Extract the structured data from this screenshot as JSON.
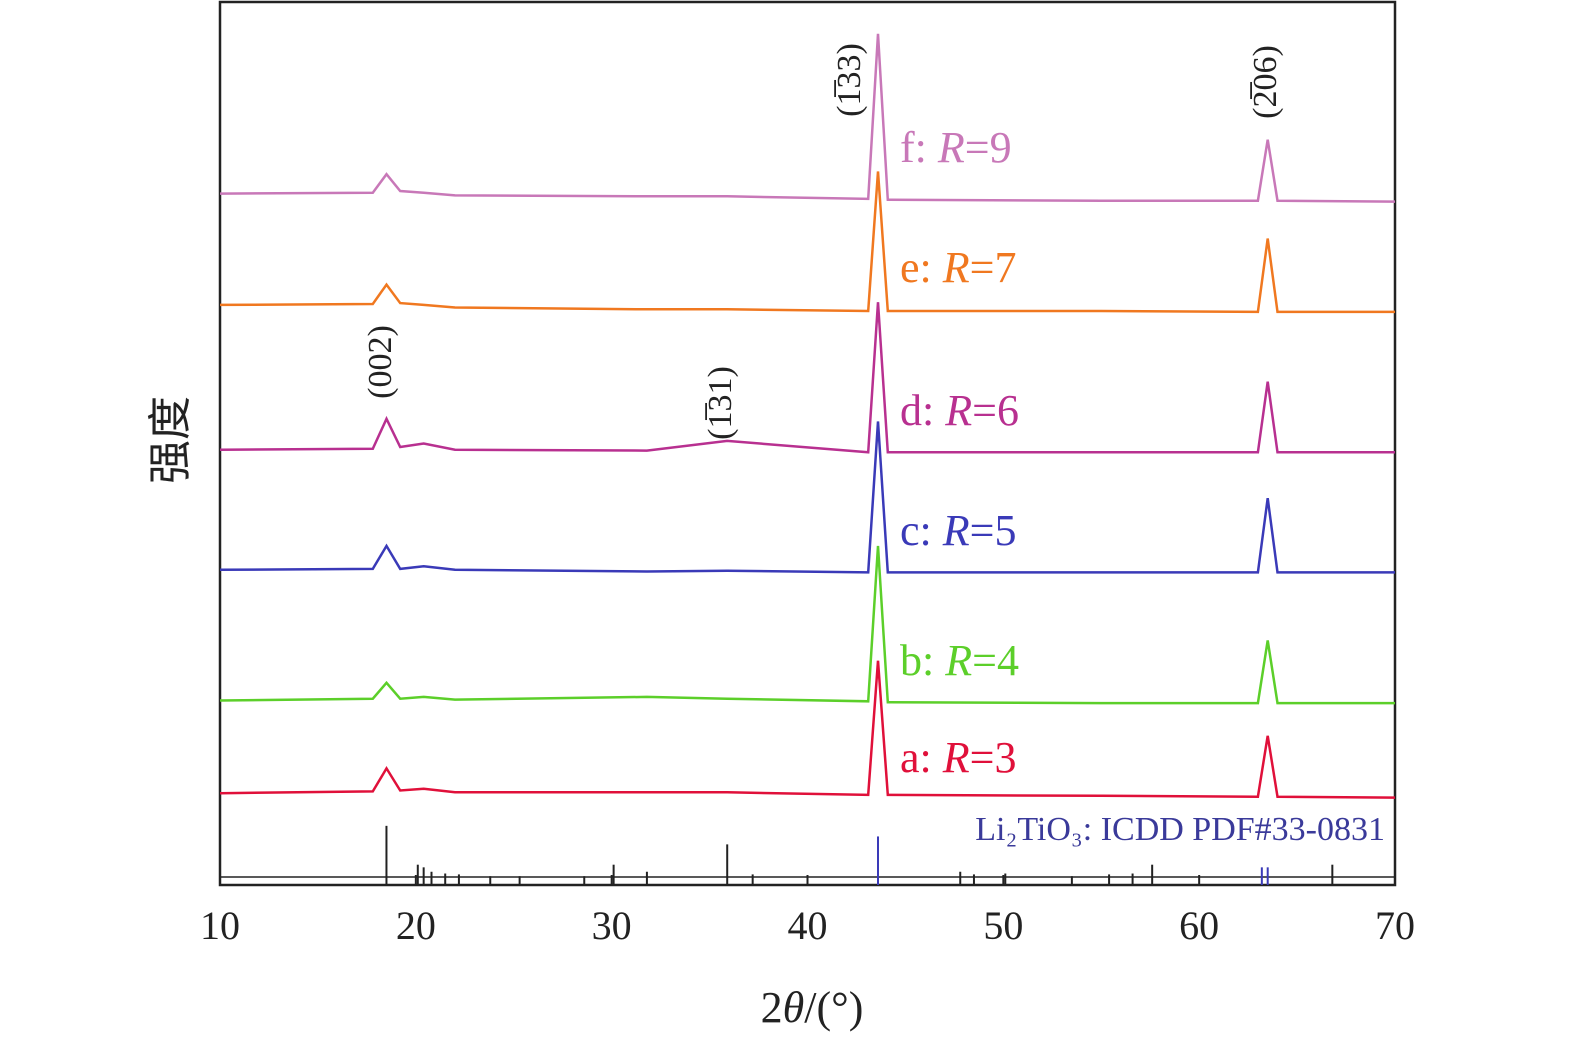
{
  "chart_data": {
    "type": "line",
    "xlabel": "2θ/(°)",
    "ylabel": "强度",
    "xlim": [
      10,
      70
    ],
    "xticks": [
      10,
      20,
      30,
      40,
      50,
      60,
      70
    ],
    "ylim": [
      0,
      100
    ],
    "x": [
      10,
      17.8,
      18.5,
      19.2,
      20.4,
      22,
      31.8,
      35.9,
      43.1,
      43.6,
      44.1,
      55,
      63.0,
      63.5,
      64.0,
      70
    ],
    "series": [
      {
        "name": "a: R=3",
        "color": "#e0103a",
        "values": [
          10.4,
          10.6,
          13.2,
          10.7,
          10.9,
          10.5,
          10.5,
          10.5,
          10.2,
          25.4,
          10.2,
          10.1,
          10.0,
          16.9,
          10.0,
          9.9
        ]
      },
      {
        "name": "b: R=4",
        "color": "#5ccf2a",
        "values": [
          20.9,
          21.1,
          22.9,
          21.1,
          21.3,
          21.0,
          21.3,
          21.1,
          20.8,
          38.4,
          20.7,
          20.6,
          20.6,
          27.7,
          20.6,
          20.6
        ]
      },
      {
        "name": "c: R=5",
        "color": "#3a3ab8",
        "values": [
          35.7,
          35.8,
          38.4,
          35.8,
          36.1,
          35.7,
          35.5,
          35.6,
          35.4,
          52.5,
          35.4,
          35.4,
          35.4,
          43.8,
          35.4,
          35.4
        ]
      },
      {
        "name": "d: R=6",
        "color": "#b83090",
        "values": [
          49.3,
          49.4,
          52.8,
          49.6,
          50.0,
          49.3,
          49.2,
          50.3,
          49.0,
          66.0,
          49.0,
          49.0,
          49.0,
          57.0,
          49.0,
          49.0
        ]
      },
      {
        "name": "e: R=7",
        "color": "#f07820",
        "values": [
          65.7,
          65.8,
          68.0,
          65.9,
          65.7,
          65.4,
          65.2,
          65.2,
          65.0,
          80.8,
          65.0,
          65.0,
          64.9,
          73.2,
          64.9,
          64.9
        ]
      },
      {
        "name": "f: R=9",
        "color": "#c878b8",
        "values": [
          78.3,
          78.4,
          80.5,
          78.6,
          78.4,
          78.1,
          78.0,
          78.0,
          77.7,
          96.4,
          77.6,
          77.5,
          77.5,
          84.4,
          77.5,
          77.4
        ]
      }
    ],
    "annotations": [
      "(002)",
      "(1̅31)",
      "(1̅33)",
      "(2̅06)"
    ],
    "reference": {
      "label": "Li₂TiO₃: ICDD PDF#33-0831",
      "x": [
        18.5,
        20.1,
        20.4,
        20.8,
        21.5,
        22.2,
        23.8,
        25.3,
        28.6,
        30.1,
        31.8,
        35.9,
        37.2,
        43.6,
        47.8,
        48.5,
        50.1,
        53.5,
        55.4,
        56.6,
        57.6,
        63.2,
        63.5,
        66.8
      ],
      "values": [
        6.7,
        2.3,
        2.0,
        1.5,
        1.3,
        1.2,
        1.0,
        1.0,
        1.0,
        2.3,
        1.5,
        4.6,
        1.2,
        5.5,
        1.5,
        1.2,
        1.3,
        1.0,
        1.2,
        1.3,
        2.3,
        2.0,
        2.0,
        2.3
      ],
      "colors": [
        "#222",
        "#222",
        "#222",
        "#222",
        "#222",
        "#222",
        "#222",
        "#222",
        "#222",
        "#222",
        "#222",
        "#222",
        "#222",
        "#3a3ab8",
        "#222",
        "#222",
        "#222",
        "#222",
        "#222",
        "#222",
        "#222",
        "#3a3ab8",
        "#3a3ab8",
        "#222"
      ]
    }
  }
}
